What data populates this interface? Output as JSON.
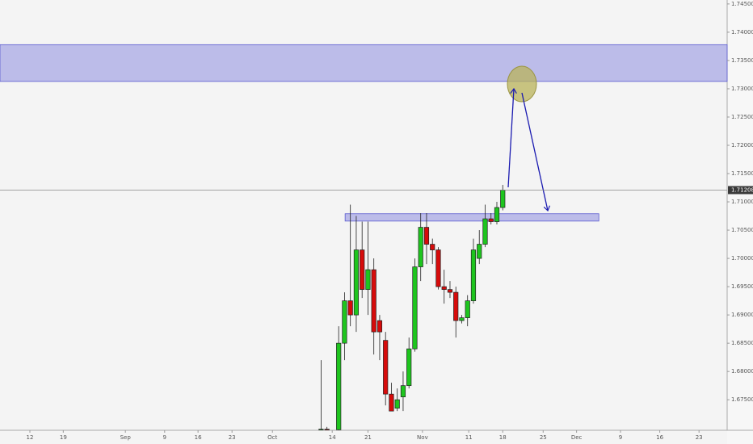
{
  "chart_data": {
    "type": "candlestick",
    "x": [
      -3,
      -2,
      0,
      1,
      2,
      3,
      4,
      5,
      6,
      7,
      8,
      9,
      10,
      11,
      12,
      13,
      14,
      15,
      16,
      17,
      18,
      19,
      20,
      21,
      22,
      23,
      24,
      25,
      26,
      27,
      28
    ],
    "open": [
      1.6697,
      1.6698,
      1.6697,
      1.685,
      1.6925,
      1.69,
      1.7015,
      1.6945,
      1.698,
      1.689,
      1.6855,
      1.676,
      1.6735,
      1.6755,
      1.6775,
      1.684,
      1.6985,
      1.7055,
      1.7025,
      1.7015,
      1.695,
      1.6945,
      1.694,
      1.689,
      1.6895,
      1.6925,
      1.7,
      1.7025,
      1.707,
      1.7065,
      1.709
    ],
    "high": [
      1.682,
      1.6702,
      1.688,
      1.694,
      1.7095,
      1.7075,
      1.7065,
      1.7065,
      1.7,
      1.69,
      1.687,
      1.678,
      1.677,
      1.68,
      1.686,
      1.7,
      1.708,
      1.708,
      1.7035,
      1.702,
      1.698,
      1.696,
      1.695,
      1.69,
      1.6935,
      1.7035,
      1.705,
      1.7095,
      1.708,
      1.71,
      1.713
    ],
    "low": [
      1.6696,
      1.6696,
      1.6696,
      1.682,
      1.688,
      1.687,
      1.693,
      1.69,
      1.683,
      1.682,
      1.674,
      1.673,
      1.673,
      1.673,
      1.677,
      1.6835,
      1.696,
      1.699,
      1.699,
      1.6945,
      1.692,
      1.693,
      1.686,
      1.6885,
      1.688,
      1.692,
      1.699,
      1.702,
      1.706,
      1.706,
      1.7085
    ],
    "close": [
      1.6698,
      1.6697,
      1.685,
      1.6925,
      1.69,
      1.7015,
      1.6945,
      1.698,
      1.687,
      1.687,
      1.676,
      1.673,
      1.675,
      1.6775,
      1.684,
      1.6985,
      1.7055,
      1.7025,
      1.7015,
      1.695,
      1.6945,
      1.694,
      1.689,
      1.6895,
      1.6925,
      1.7015,
      1.7025,
      1.707,
      1.7065,
      1.709,
      1.71208
    ],
    "up_color": "#1ec51e",
    "down_color": "#d60b0b",
    "xlim": [
      -57.8,
      66.3
    ],
    "xticks": [
      {
        "value": -52.7,
        "label": "12"
      },
      {
        "value": -47,
        "label": "19"
      },
      {
        "value": -36.4,
        "label": "Sep"
      },
      {
        "value": -29.7,
        "label": "9"
      },
      {
        "value": -24,
        "label": "16"
      },
      {
        "value": -18.2,
        "label": "23"
      },
      {
        "value": -11.3,
        "label": "Oct"
      },
      {
        "value": -1.1,
        "label": "14"
      },
      {
        "value": 5,
        "label": "21"
      },
      {
        "value": 14.3,
        "label": "Nov"
      },
      {
        "value": 22.2,
        "label": "11"
      },
      {
        "value": 28,
        "label": "18"
      },
      {
        "value": 34.9,
        "label": "25"
      },
      {
        "value": 40.6,
        "label": "Dec"
      },
      {
        "value": 48.1,
        "label": "9"
      },
      {
        "value": 54.8,
        "label": "16"
      },
      {
        "value": 61.5,
        "label": "23"
      }
    ],
    "ylim": [
      1.6696,
      1.7457
    ],
    "yticks": [
      {
        "value": 1.675,
        "label": "1.67500"
      },
      {
        "value": 1.68,
        "label": "1.68000"
      },
      {
        "value": 1.685,
        "label": "1.68500"
      },
      {
        "value": 1.69,
        "label": "1.69000"
      },
      {
        "value": 1.695,
        "label": "1.69500"
      },
      {
        "value": 1.7,
        "label": "1.70000"
      },
      {
        "value": 1.705,
        "label": "1.70500"
      },
      {
        "value": 1.71,
        "label": "1.71000"
      },
      {
        "value": 1.715,
        "label": "1.71500"
      },
      {
        "value": 1.72,
        "label": "1.72000"
      },
      {
        "value": 1.725,
        "label": "1.72500"
      },
      {
        "value": 1.73,
        "label": "1.73000"
      },
      {
        "value": 1.735,
        "label": "1.73500"
      },
      {
        "value": 1.74,
        "label": "1.74000"
      },
      {
        "value": 1.745,
        "label": "1.74500"
      }
    ],
    "last_price": 1.71208,
    "zones": [
      {
        "x": [
          -57.8,
          66.3
        ],
        "y": [
          1.7313,
          1.7378
        ]
      },
      {
        "x": [
          1.1,
          44.4
        ],
        "y": [
          1.7066,
          1.7079
        ]
      }
    ]
  }
}
